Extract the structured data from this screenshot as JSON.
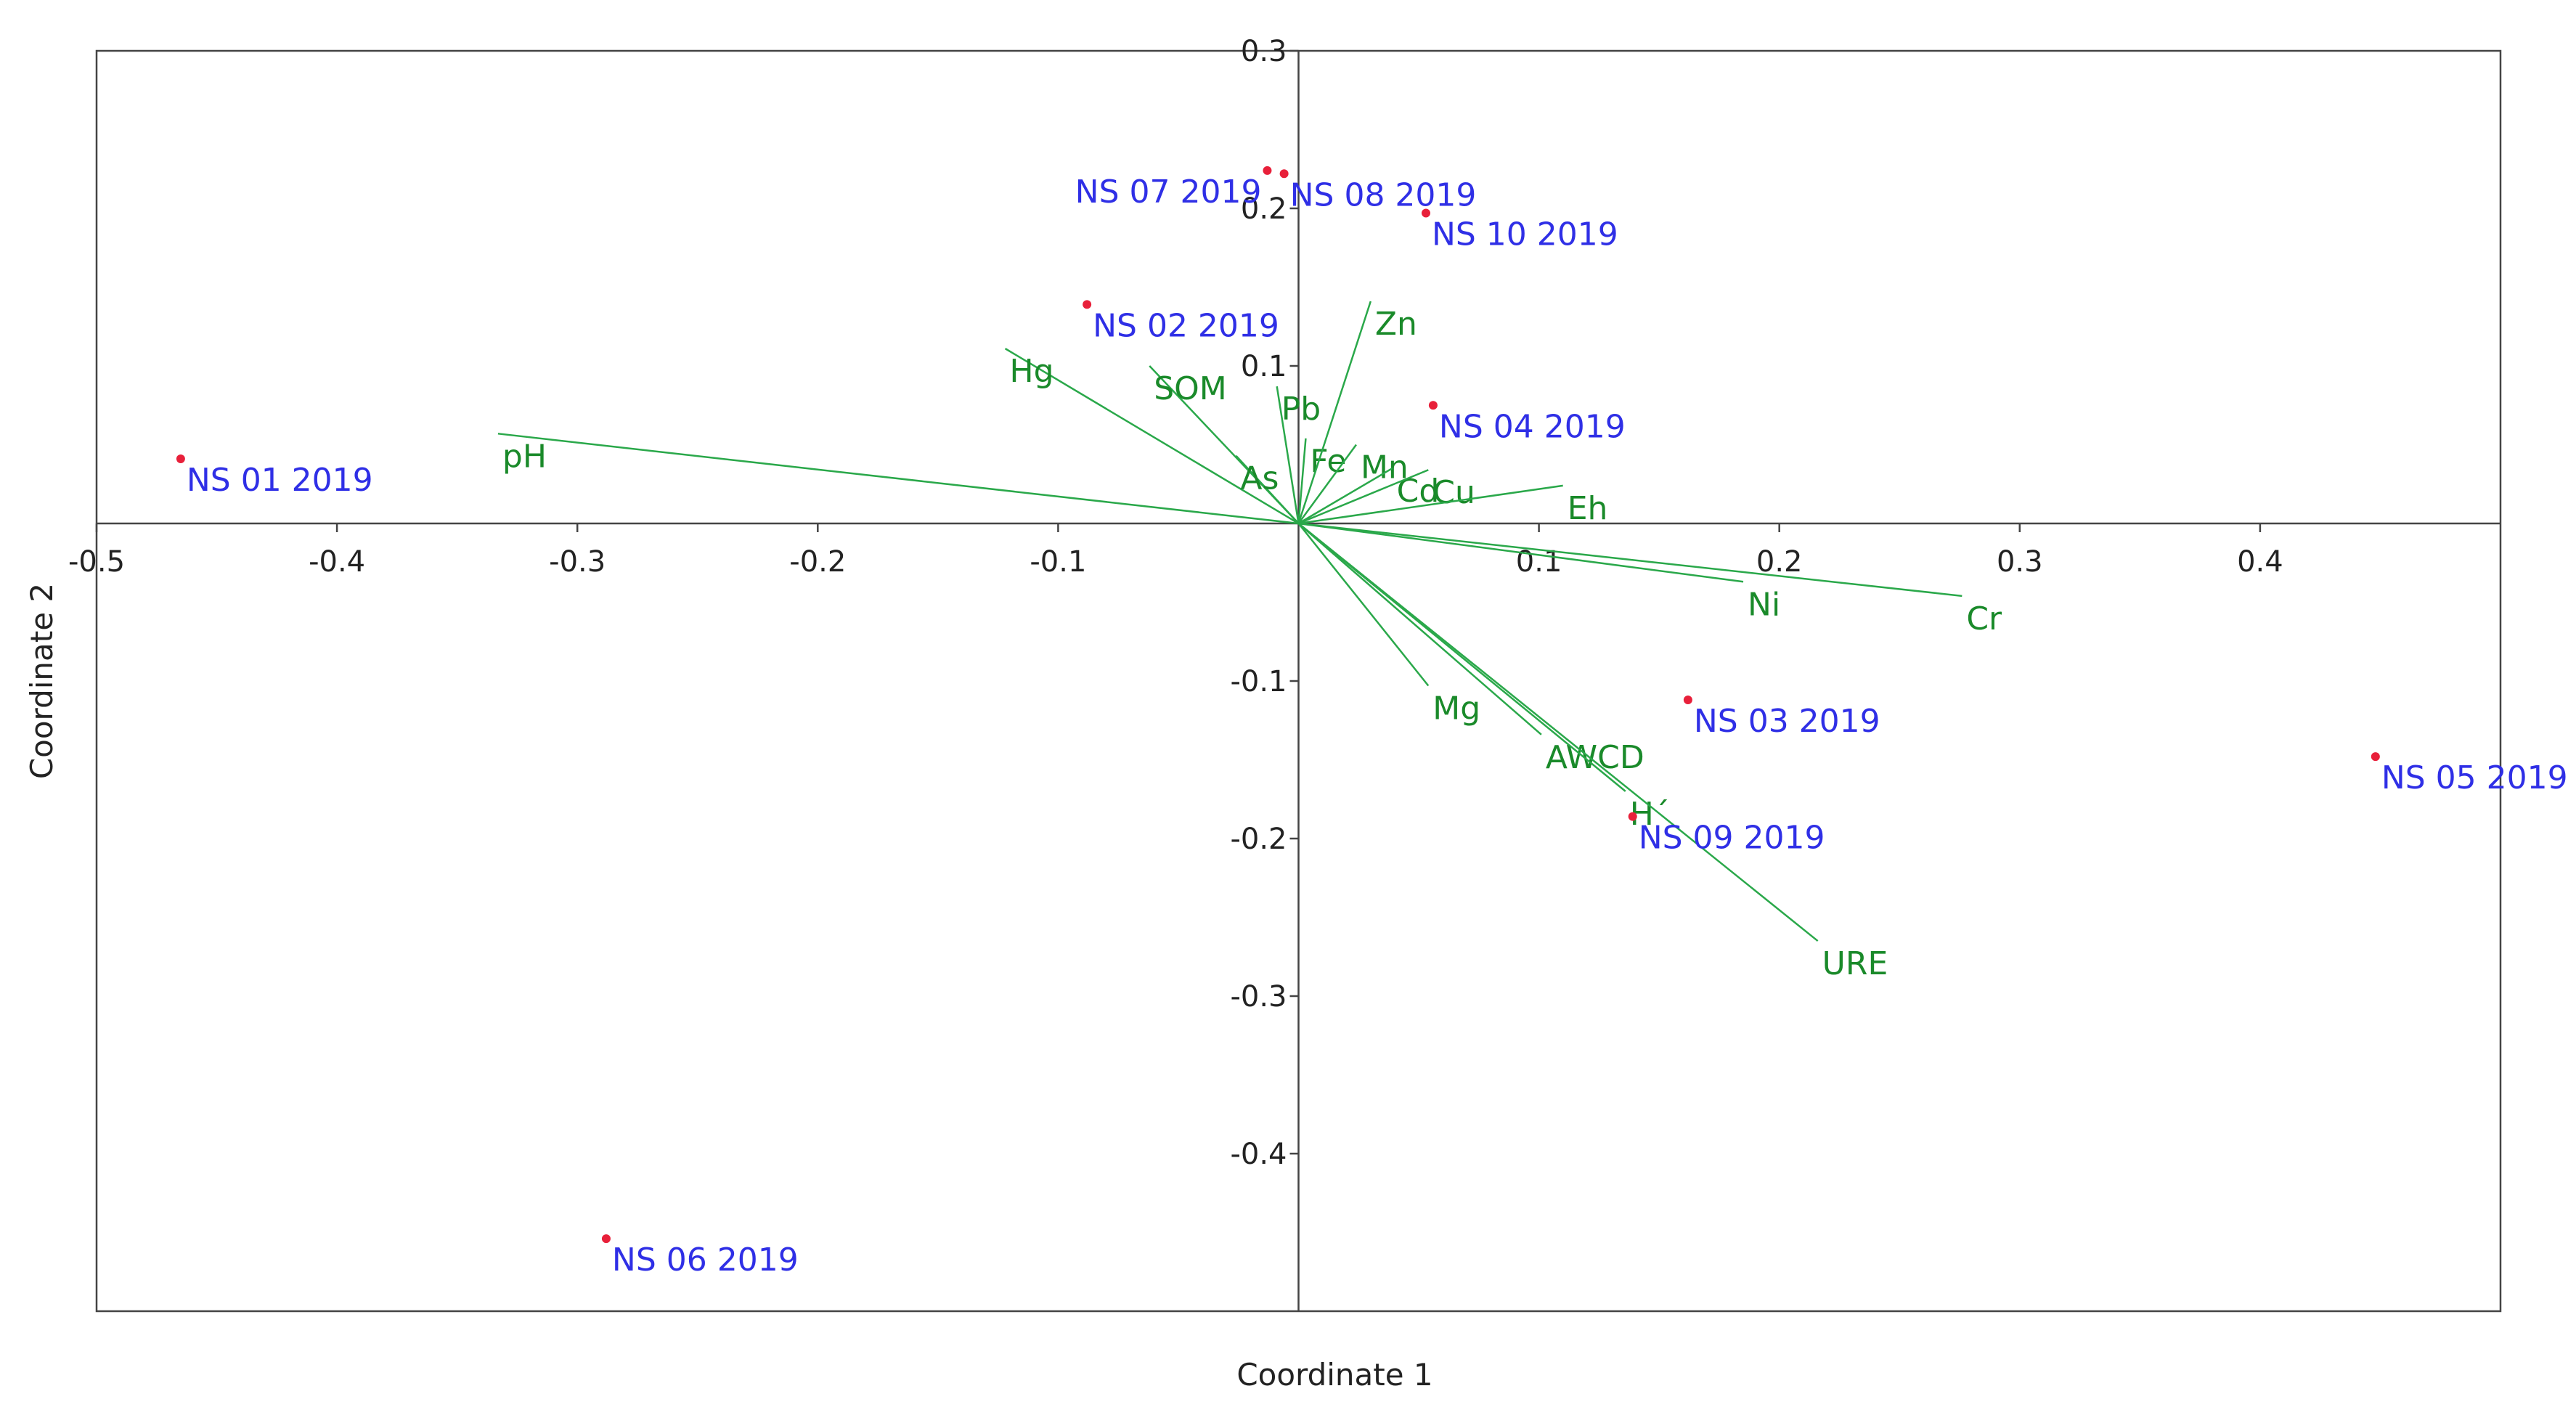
{
  "chart_data": {
    "type": "scatter",
    "subtype": "biplot",
    "xlabel": "Coordinate 1",
    "ylabel": "Coordinate 2",
    "xlim": [
      -0.5,
      0.5
    ],
    "ylim": [
      -0.5,
      0.3
    ],
    "x_ticks": [
      -0.5,
      -0.4,
      -0.3,
      -0.2,
      -0.1,
      0.1,
      0.2,
      0.3,
      0.4
    ],
    "x_tick_labels": [
      "-0.5",
      "-0.4",
      "-0.3",
      "-0.2",
      "-0.1",
      "0.1",
      "0.2",
      "0.3",
      "0.4"
    ],
    "y_ticks": [
      0.3,
      0.2,
      0.1,
      -0.1,
      -0.2,
      -0.3,
      -0.4
    ],
    "y_tick_labels": [
      "0.3",
      "0.2",
      "0.1",
      "-0.1",
      "-0.2",
      "-0.3",
      "-0.4"
    ],
    "point_color": "#e8203a",
    "site_label_color": "#2f2fe6",
    "vector_color": "#2aa84a",
    "vector_label_color": "#1a8a2a",
    "sites": [
      {
        "name": "NS 01 2019",
        "x": -0.465,
        "y": 0.041,
        "label_side": "right"
      },
      {
        "name": "NS 02 2019",
        "x": -0.088,
        "y": 0.139,
        "label_side": "right"
      },
      {
        "name": "NS 03 2019",
        "x": 0.162,
        "y": -0.112,
        "label_side": "right"
      },
      {
        "name": "NS 04 2019",
        "x": 0.056,
        "y": 0.075,
        "label_side": "right"
      },
      {
        "name": "NS 05 2019",
        "x": 0.448,
        "y": -0.148,
        "label_side": "right"
      },
      {
        "name": "NS 06 2019",
        "x": -0.288,
        "y": -0.454,
        "label_side": "right"
      },
      {
        "name": "NS 07 2019",
        "x": -0.013,
        "y": 0.224,
        "label_side": "left"
      },
      {
        "name": "NS 08 2019",
        "x": -0.006,
        "y": 0.222,
        "label_side": "right"
      },
      {
        "name": "NS 09 2019",
        "x": 0.139,
        "y": -0.186,
        "label_side": "right"
      },
      {
        "name": "NS 10 2019",
        "x": 0.053,
        "y": 0.197,
        "label_side": "right"
      }
    ],
    "vectors": [
      {
        "name": "pH",
        "x": -0.333,
        "y": 0.057
      },
      {
        "name": "Hg",
        "x": -0.122,
        "y": 0.111
      },
      {
        "name": "SOM",
        "x": -0.062,
        "y": 0.1
      },
      {
        "name": "As",
        "x": -0.026,
        "y": 0.043
      },
      {
        "name": "Pb",
        "x": -0.009,
        "y": 0.087
      },
      {
        "name": "Fe",
        "x": 0.003,
        "y": 0.054
      },
      {
        "name": "Mn",
        "x": 0.024,
        "y": 0.05
      },
      {
        "name": "Zn",
        "x": 0.03,
        "y": 0.141
      },
      {
        "name": "Cd",
        "x": 0.039,
        "y": 0.035
      },
      {
        "name": "Cu",
        "x": 0.054,
        "y": 0.034
      },
      {
        "name": "Eh",
        "x": 0.11,
        "y": 0.024
      },
      {
        "name": "Ni",
        "x": 0.185,
        "y": -0.037
      },
      {
        "name": "Cr",
        "x": 0.276,
        "y": -0.046
      },
      {
        "name": "Mg",
        "x": 0.054,
        "y": -0.103
      },
      {
        "name": "AWCD",
        "x": 0.101,
        "y": -0.134
      },
      {
        "name": "H´",
        "x": 0.136,
        "y": -0.17
      },
      {
        "name": "URE",
        "x": 0.216,
        "y": -0.265
      }
    ]
  }
}
